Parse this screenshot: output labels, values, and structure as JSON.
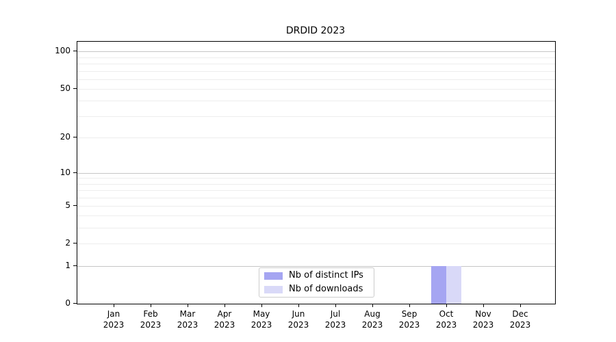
{
  "chart": {
    "title": "DRDID 2023",
    "legend": {
      "entries": [
        {
          "label": "Nb of distinct IPs",
          "color": "#a5a5f2"
        },
        {
          "label": "Nb of downloads",
          "color": "#d9d9f8"
        }
      ]
    }
  },
  "chart_data": {
    "type": "bar",
    "title": "DRDID 2023",
    "categories": [
      "Jan 2023",
      "Feb 2023",
      "Mar 2023",
      "Apr 2023",
      "May 2023",
      "Jun 2023",
      "Jul 2023",
      "Aug 2023",
      "Sep 2023",
      "Oct 2023",
      "Nov 2023",
      "Dec 2023"
    ],
    "series": [
      {
        "name": "Nb of distinct IPs",
        "color": "#a5a5f2",
        "values": [
          0,
          0,
          0,
          0,
          0,
          0,
          0,
          0,
          0,
          1,
          0,
          0
        ]
      },
      {
        "name": "Nb of downloads",
        "color": "#d9d9f8",
        "values": [
          0,
          0,
          0,
          0,
          0,
          0,
          0,
          0,
          0,
          1,
          0,
          0
        ]
      }
    ],
    "xlabel": "",
    "ylabel": "",
    "yscale": "log10(1+v)",
    "ylim": [
      0,
      120
    ],
    "y_ticks": [
      0,
      1,
      2,
      5,
      10,
      20,
      50,
      100
    ],
    "y_major_gridlines": [
      1,
      10,
      100
    ],
    "y_minor_gridlines": [
      2,
      3,
      4,
      5,
      6,
      7,
      8,
      9,
      20,
      30,
      40,
      50,
      60,
      70,
      80,
      90
    ],
    "grid": "horizontal",
    "legend_position": "bottom-center-inside"
  }
}
